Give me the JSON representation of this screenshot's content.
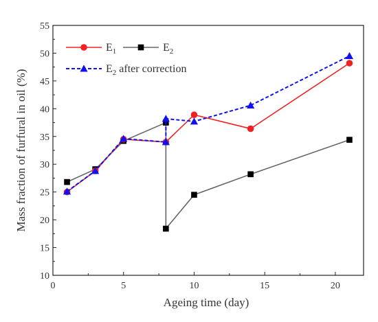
{
  "chart_data": {
    "type": "line",
    "title": "",
    "xlabel": "Ageing time (day)",
    "ylabel": "Mass fraction of furfural in  oil (%)",
    "xlim": [
      0,
      22
    ],
    "ylim": [
      10,
      55
    ],
    "xticks": [
      0,
      5,
      10,
      15,
      20
    ],
    "yticks": [
      10,
      15,
      20,
      25,
      30,
      35,
      40,
      45,
      50,
      55
    ],
    "grid": false,
    "legend": "top-left",
    "series": [
      {
        "name": "E1",
        "label_main": "E",
        "label_sub": "1",
        "color": "#ee2222",
        "marker": "circle",
        "line_style": "solid",
        "x": [
          1,
          3,
          5,
          8,
          10,
          14,
          21
        ],
        "y": [
          25.0,
          28.8,
          34.5,
          34.0,
          38.9,
          36.4,
          48.2
        ]
      },
      {
        "name": "E2",
        "label_main": "E",
        "label_sub": "2",
        "color": "#666666",
        "marker_color": "#000000",
        "marker": "square",
        "line_style": "solid",
        "x": [
          1,
          3,
          5,
          8,
          8,
          10,
          14,
          21
        ],
        "y": [
          26.8,
          29.1,
          34.2,
          37.5,
          18.4,
          24.5,
          28.2,
          34.4
        ]
      },
      {
        "name": "E2 after correction",
        "label_main": "E",
        "label_sub": "2",
        "label_rest": " after correction",
        "color": "#1111ee",
        "marker": "triangle",
        "line_style": "dashed",
        "x": [
          1,
          3,
          5,
          8,
          8,
          10,
          14,
          21
        ],
        "y": [
          25.1,
          28.8,
          34.6,
          34.0,
          38.2,
          37.7,
          40.6,
          49.5
        ]
      }
    ]
  }
}
